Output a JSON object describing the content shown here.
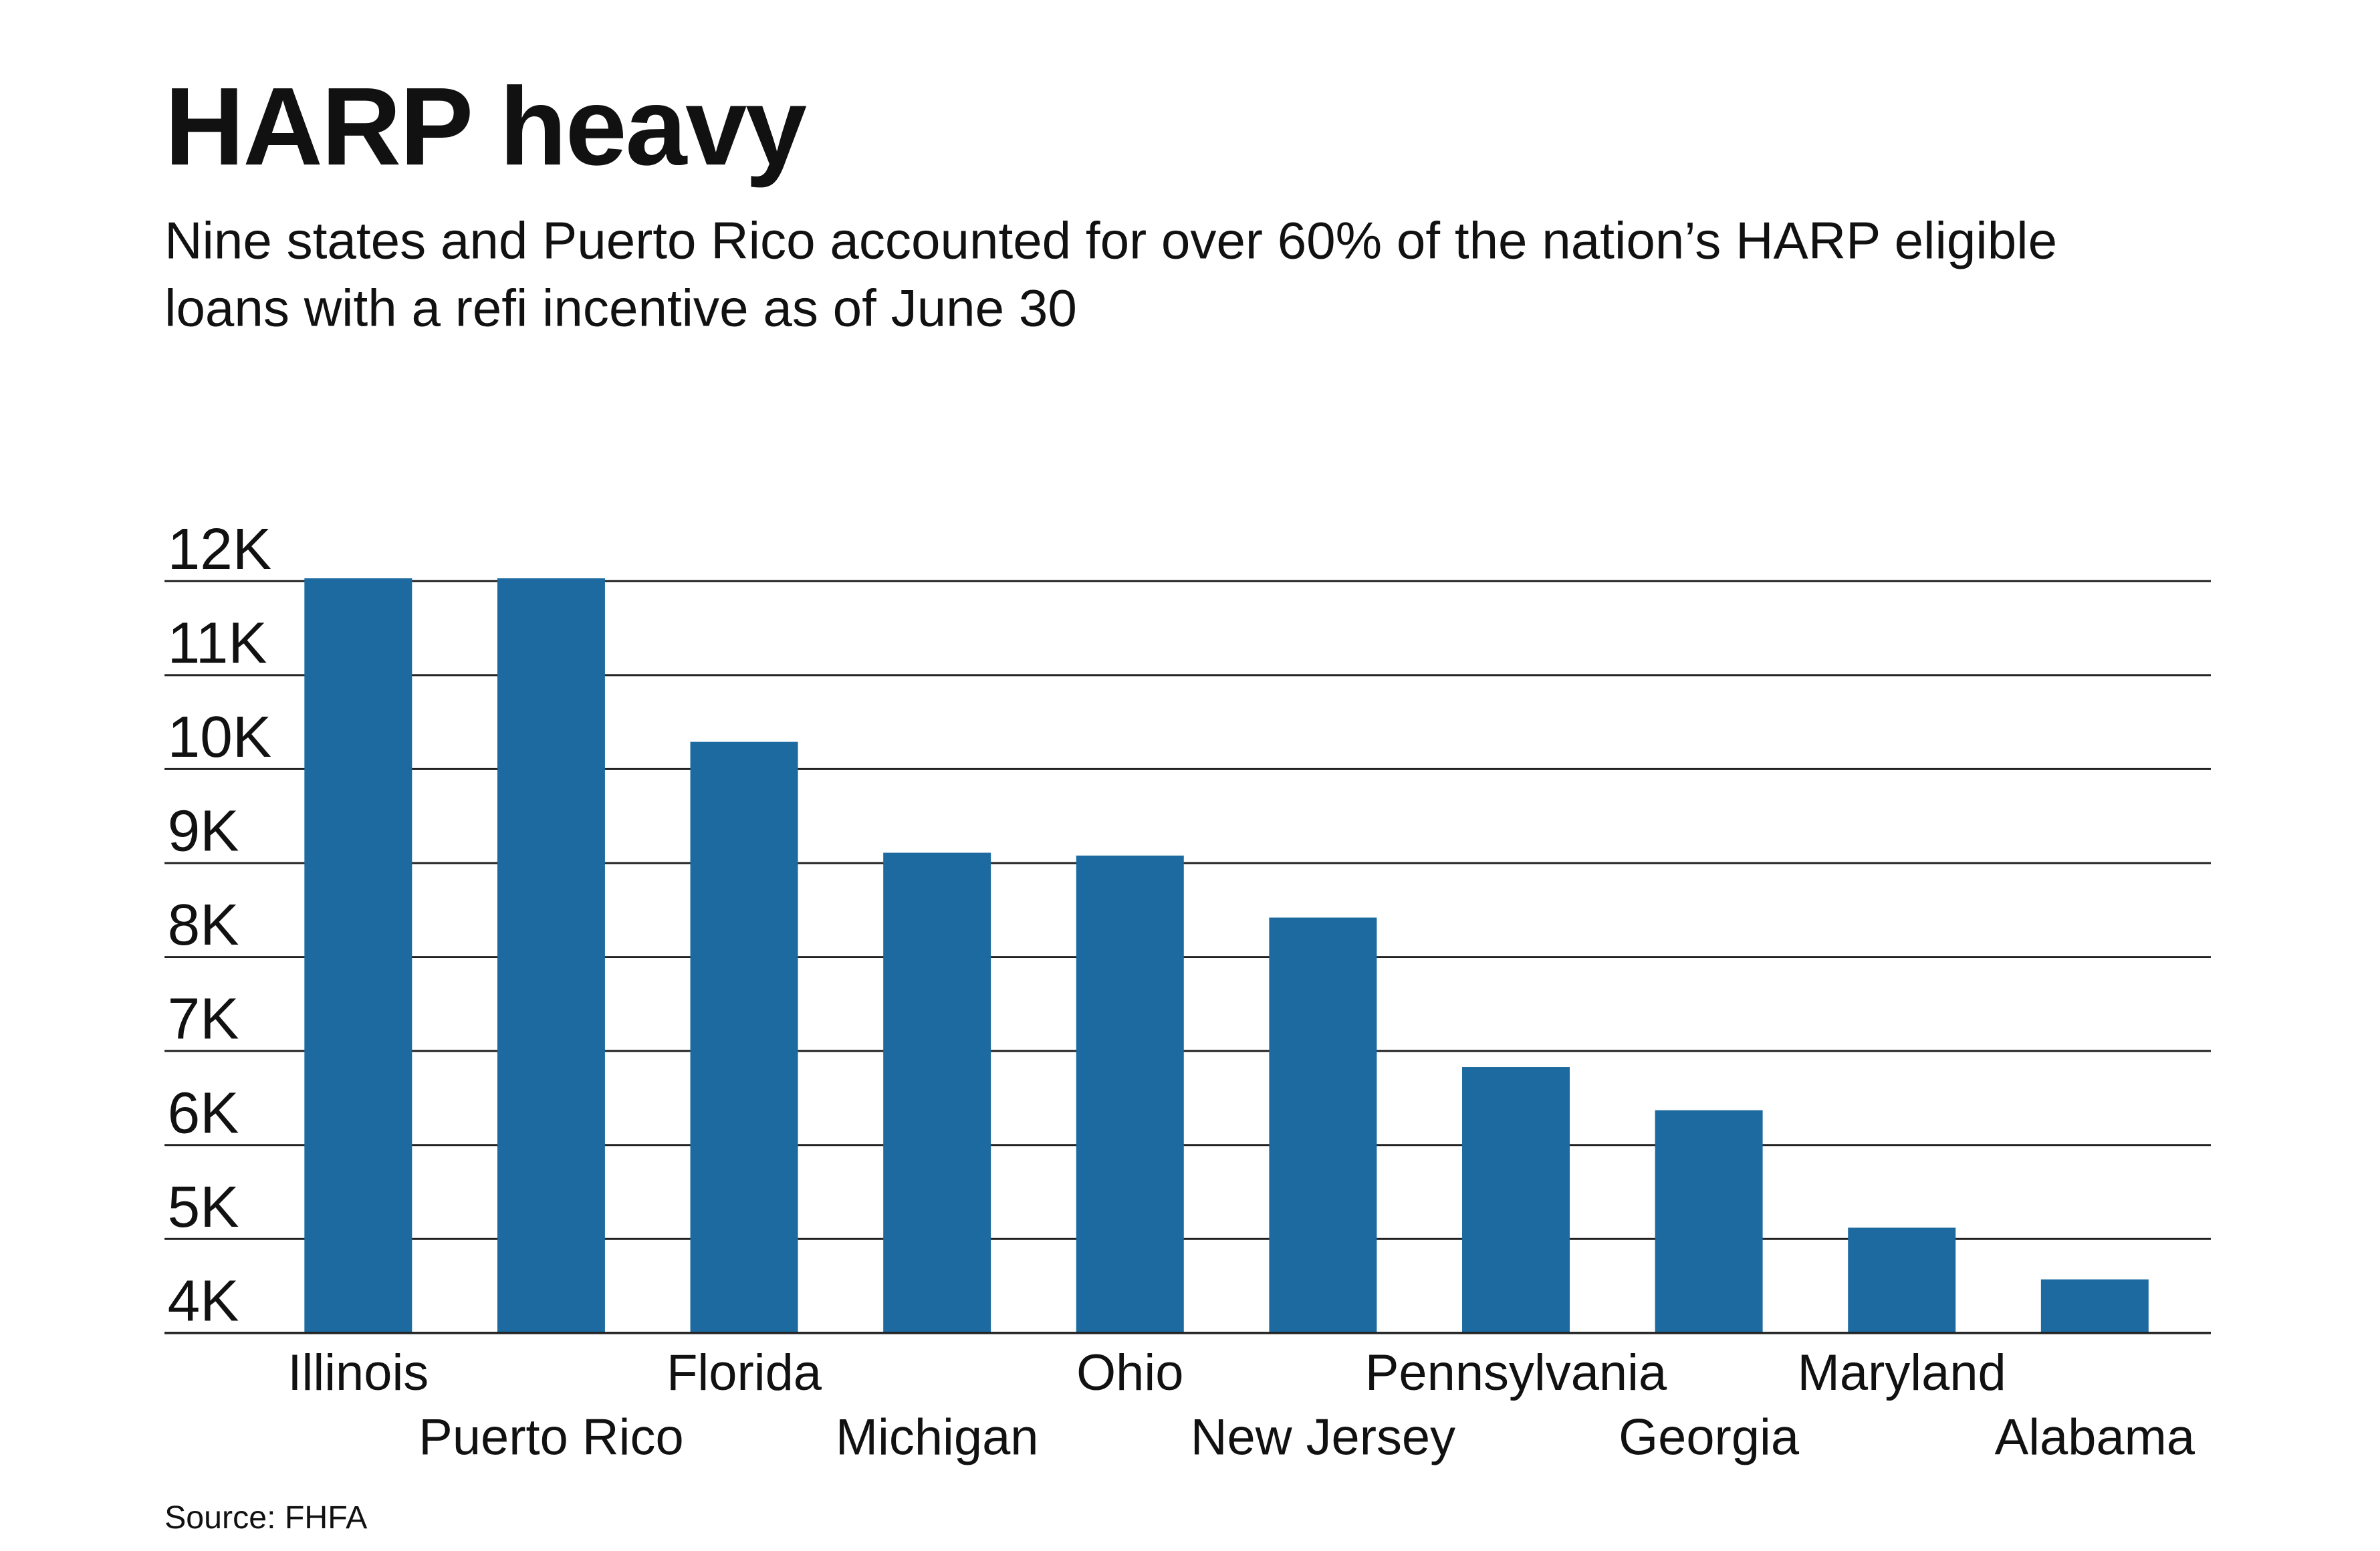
{
  "chart_data": {
    "type": "bar",
    "title": "HARP heavy",
    "subtitle": "Nine states and Puerto Rico accounted for over 60% of the nation’s HARP eligible loans with a refi incentive as of June 30",
    "source": "Source: FHFA",
    "xlabel": "",
    "ylabel": "",
    "categories": [
      "Illinois",
      "Puerto Rico",
      "Florida",
      "Michigan",
      "Ohio",
      "New Jersey",
      "Pennsylvania",
      "Georgia",
      "Maryland",
      "Alabama"
    ],
    "values": [
      12030,
      12030,
      10290,
      9110,
      9080,
      8420,
      6830,
      6370,
      5120,
      4570
    ],
    "ylim": [
      4000,
      12000
    ],
    "yticks": [
      4000,
      5000,
      6000,
      7000,
      8000,
      9000,
      10000,
      11000,
      12000
    ],
    "ytick_labels": [
      "4K",
      "5K",
      "6K",
      "7K",
      "8K",
      "9K",
      "10K",
      "11K",
      "12K"
    ],
    "grid": true,
    "bar_color": "#1c6aa0"
  }
}
